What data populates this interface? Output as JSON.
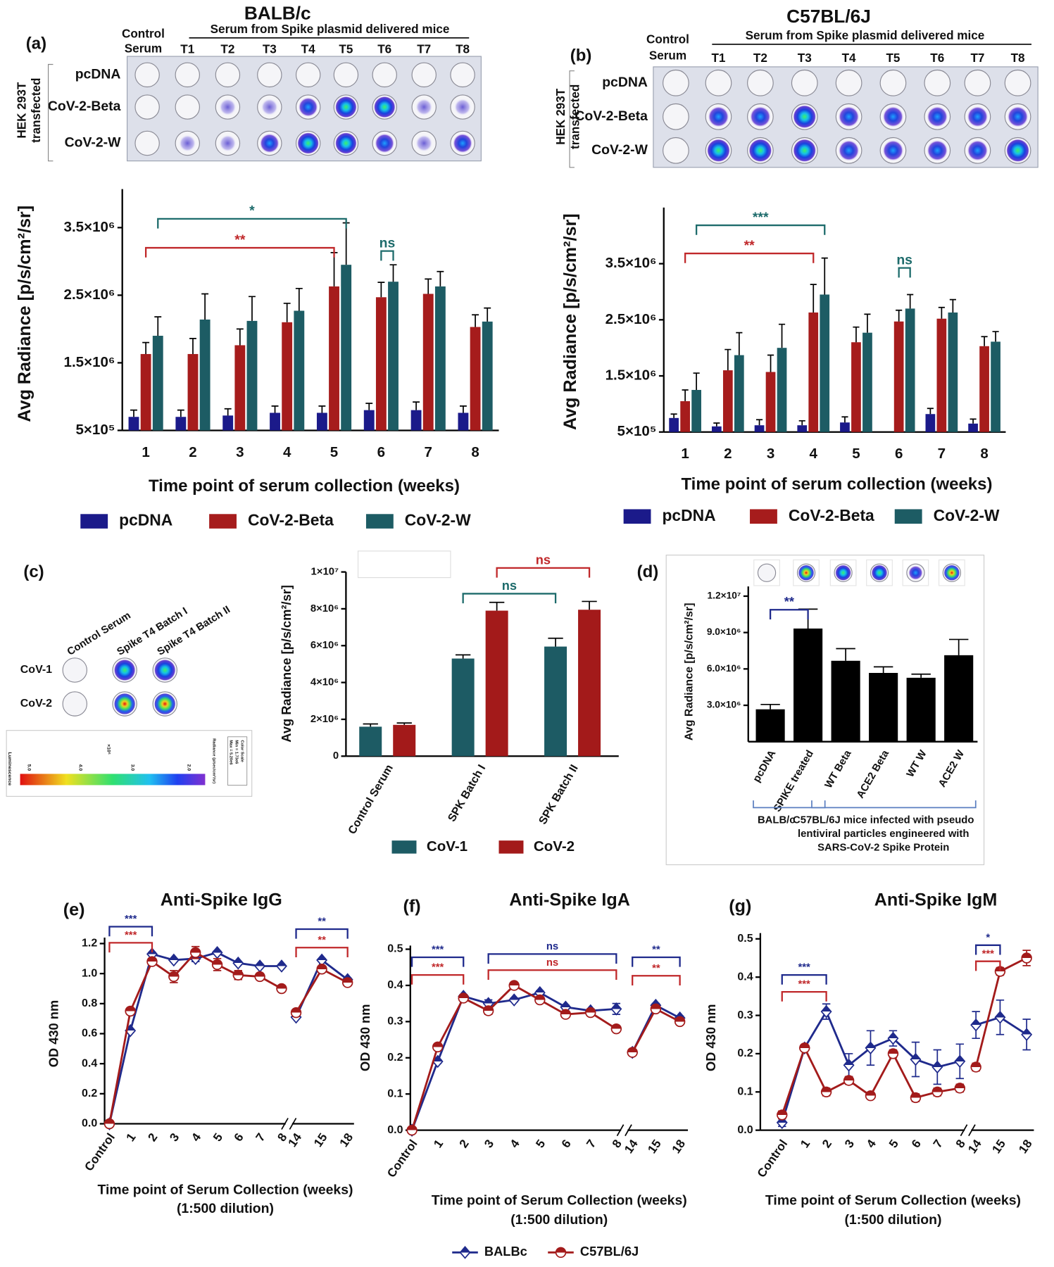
{
  "plates": [
    {
      "label": "(a)",
      "title": "BALB/c",
      "header": "Serum from Spike plasmid delivered mice",
      "control_label": [
        "Control",
        "Serum"
      ],
      "columns": [
        "T1",
        "T2",
        "T3",
        "T4",
        "T5",
        "T6",
        "T7",
        "T8"
      ],
      "rows": [
        "pcDNA",
        "CoV-2-Beta",
        "CoV-2-W"
      ],
      "side_label": [
        "HEK 293T",
        "transfected"
      ]
    },
    {
      "label": "(b)",
      "title": "C57BL/6J",
      "header": "Serum from Spike plasmid delivered mice",
      "control_label": [
        "Control",
        "Serum"
      ],
      "columns": [
        "T1",
        "T2",
        "T3",
        "T4",
        "T5",
        "T6",
        "T7",
        "T8"
      ],
      "rows": [
        "pcDNA",
        "CoV-2-Beta",
        "CoV-2-W"
      ],
      "side_label": [
        "HEK 293T",
        "transfected"
      ]
    }
  ],
  "heatmap": {
    "label": "(c)",
    "columns": [
      "Control Serum",
      "Spike T4 Batch I",
      "Spike T4 Batch II"
    ],
    "rows": [
      "CoV-1",
      "CoV-2"
    ],
    "colorbar": {
      "ticks": [
        "5.0",
        "4.0",
        "3.0",
        "2.0"
      ],
      "exponent": "×10⁶",
      "title": "Luminescence",
      "unit": "Radiance (p/sec/cm²/sr)",
      "scale": [
        "Color Scale",
        "Min = 1.73e6",
        "Max = 5.20e6"
      ]
    }
  },
  "chart_data": [
    {
      "type": "bar",
      "x_label": "Time point of serum collection (weeks)",
      "y_label": "Avg Radiance [p/s/cm²/sr]",
      "categories": [
        "1",
        "2",
        "3",
        "4",
        "5",
        "6",
        "7",
        "8"
      ],
      "series": [
        {
          "name": "pcDNA",
          "color": "#1b1a8a",
          "values": [
            700000,
            700000,
            720000,
            760000,
            760000,
            800000,
            800000,
            760000
          ],
          "errors": [
            100000,
            100000,
            100000,
            100000,
            100000,
            100000,
            120000,
            100000
          ]
        },
        {
          "name": "CoV-2-Beta",
          "color": "#a61c1c",
          "values": [
            1630000,
            1630000,
            1760000,
            2100000,
            2630000,
            2470000,
            2520000,
            2030000
          ],
          "errors": [
            170000,
            230000,
            240000,
            280000,
            500000,
            220000,
            220000,
            180000
          ]
        },
        {
          "name": "CoV-2-W",
          "color": "#1d5c64",
          "values": [
            1900000,
            2140000,
            2120000,
            2270000,
            2950000,
            2700000,
            2630000,
            2110000
          ],
          "errors": [
            280000,
            380000,
            360000,
            330000,
            620000,
            250000,
            220000,
            200000
          ]
        }
      ],
      "ylim": [
        500000,
        4070000
      ],
      "yticks": [
        {
          "value": 500000,
          "label": "5×10⁵"
        },
        {
          "value": 1500000,
          "label": "1.5×10⁶"
        },
        {
          "value": 2500000,
          "label": "2.5×10⁶"
        },
        {
          "value": 3500000,
          "label": "3.5×10⁶"
        }
      ],
      "legend": "bottom",
      "annotations": [
        {
          "text": "**",
          "from": [
            "1",
            "CoV-2-Beta"
          ],
          "to": [
            "5",
            "CoV-2-Beta"
          ],
          "color": "#c0282a"
        },
        {
          "text": "*",
          "from": [
            "1",
            "CoV-2-W"
          ],
          "to": [
            "5",
            "CoV-2-W"
          ],
          "color": "#1d6b6b"
        },
        {
          "text": "ns",
          "from": [
            "6",
            "CoV-2-Beta"
          ],
          "to": [
            "6",
            "CoV-2-W"
          ],
          "color": "#1d6b6b"
        }
      ]
    },
    {
      "type": "bar",
      "x_label": "Time point of serum collection (weeks)",
      "y_label": "Avg Radiance [p/s/cm²/sr]",
      "categories": [
        "1",
        "2",
        "3",
        "4",
        "5",
        "6",
        "7",
        "8"
      ],
      "series": [
        {
          "name": "pcDNA",
          "color": "#1b1a8a",
          "values": [
            750000,
            600000,
            620000,
            620000,
            670000,
            null,
            820000,
            650000
          ],
          "errors": [
            70000,
            60000,
            100000,
            80000,
            100000,
            null,
            100000,
            80000
          ]
        },
        {
          "name": "CoV-2-Beta",
          "color": "#a61c1c",
          "values": [
            1050000,
            1600000,
            1570000,
            2630000,
            2100000,
            2470000,
            2520000,
            2030000
          ],
          "errors": [
            200000,
            370000,
            300000,
            500000,
            270000,
            200000,
            200000,
            170000
          ]
        },
        {
          "name": "CoV-2-W",
          "color": "#1d5c64",
          "values": [
            1250000,
            1870000,
            2000000,
            2950000,
            2270000,
            2700000,
            2630000,
            2110000
          ],
          "errors": [
            300000,
            400000,
            420000,
            650000,
            330000,
            250000,
            230000,
            180000
          ]
        }
      ],
      "ylim": [
        500000,
        4500000
      ],
      "yticks": [
        {
          "value": 500000,
          "label": "5×10⁵"
        },
        {
          "value": 1500000,
          "label": "1.5×10⁶"
        },
        {
          "value": 2500000,
          "label": "2.5×10⁶"
        },
        {
          "value": 3500000,
          "label": "3.5×10⁶"
        }
      ],
      "legend": "bottom",
      "annotations": [
        {
          "text": "***",
          "from": [
            "1",
            "CoV-2-W"
          ],
          "to": [
            "4",
            "CoV-2-W"
          ],
          "color": "#1d6b6b"
        },
        {
          "text": "**",
          "from": [
            "1",
            "CoV-2-Beta"
          ],
          "to": [
            "4",
            "CoV-2-Beta"
          ],
          "color": "#c0282a"
        },
        {
          "text": "ns",
          "from": [
            "6",
            "CoV-2-Beta"
          ],
          "to": [
            "6",
            "CoV-2-W"
          ],
          "color": "#1d6b6b"
        }
      ]
    },
    {
      "type": "bar",
      "y_label": "Avg Radiance [p/s/cm²/sr]",
      "categories": [
        "Control Serum",
        "SPK  Batch I",
        "SPK Batch II"
      ],
      "series": [
        {
          "name": "CoV-1",
          "color": "#1d5b64",
          "values": [
            1600000,
            5300000,
            5950000
          ],
          "errors": [
            150000,
            200000,
            450000
          ]
        },
        {
          "name": "CoV-2",
          "color": "#a31a1a",
          "values": [
            1700000,
            7900000,
            7950000
          ],
          "errors": [
            100000,
            450000,
            450000
          ]
        }
      ],
      "ylim": [
        0,
        10000000
      ],
      "yticks": [
        0,
        {
          "value": 2000000,
          "label": "2×10⁶"
        },
        {
          "value": 4000000,
          "label": "4×10⁶"
        },
        {
          "value": 6000000,
          "label": "6×10⁶"
        },
        {
          "value": 8000000,
          "label": "8×10⁶"
        },
        {
          "value": 10000000,
          "label": "1×10⁷"
        }
      ],
      "legend": "bottom",
      "annotations": [
        {
          "text": "ns",
          "from": [
            "SPK  Batch I",
            "CoV-1"
          ],
          "to": [
            "SPK Batch II",
            "CoV-1"
          ],
          "color": "#1d6b6b"
        },
        {
          "text": "ns",
          "from": [
            "SPK  Batch I",
            "CoV-2"
          ],
          "to": [
            "SPK Batch II",
            "CoV-2"
          ],
          "color": "#c0282a"
        }
      ]
    },
    {
      "type": "bar",
      "label": "(d)",
      "y_label": "Avg Radiance [p/s/cm²/sr]",
      "categories": [
        "pcDNA",
        "SPIKE treated",
        "WT Beta",
        "ACE2 Beta",
        "WT W",
        "ACE2 W"
      ],
      "values": [
        2670000,
        9330000,
        6670000,
        5670000,
        5270000,
        7130000
      ],
      "errors": [
        400000,
        1600000,
        1000000,
        500000,
        300000,
        1300000
      ],
      "color": "#000000",
      "ylim": [
        0,
        12800000
      ],
      "yticks": [
        {
          "value": 3000000,
          "label": "3.0×10⁶"
        },
        {
          "value": 6000000,
          "label": "6.0×10⁶"
        },
        {
          "value": 9000000,
          "label": "9.0×10⁶"
        },
        {
          "value": 12000000,
          "label": "1.2×10⁷"
        }
      ],
      "groups": [
        {
          "lines": [
            "BALB/c"
          ],
          "from": "pcDNA",
          "to": "SPIKE treated"
        },
        {
          "lines": [
            "C57BL/6J mice infected with pseudo",
            "lentiviral particles engineered with",
            "SARS-CoV-2 Spike Protein"
          ],
          "from": "SPIKE treated",
          "to": "ACE2 W"
        }
      ],
      "annotations": [
        {
          "text": "**",
          "from": "pcDNA",
          "to": "SPIKE treated",
          "color": "#1f2a8c"
        }
      ]
    },
    {
      "type": "line",
      "label": "(e)",
      "title": "Anti-Spike IgG",
      "y_label": "OD 430 nm",
      "x_label": [
        "Time point of Serum Collection (weeks)",
        "(1:500 dilution)"
      ],
      "categories": [
        "Control",
        "1",
        "2",
        "3",
        "4",
        "5",
        "6",
        "7",
        "8",
        "14",
        "15",
        "18"
      ],
      "axis_break_after": "8",
      "series": [
        {
          "color": "#1f2a8c",
          "marker": "diamond",
          "values": [
            0,
            0.62,
            1.13,
            1.09,
            1.1,
            1.14,
            1.07,
            1.05,
            1.05,
            0.71,
            1.09,
            0.96
          ],
          "errors": [
            0.01,
            0.01,
            0.01,
            0.01,
            0.02,
            0.01,
            0.01,
            0.01,
            0.01,
            0.01,
            0.01,
            0.01
          ]
        },
        {
          "color": "#a31b1b",
          "marker": "circle",
          "values": [
            0,
            0.75,
            1.08,
            0.98,
            1.14,
            1.06,
            0.99,
            0.98,
            0.9,
            0.74,
            1.03,
            0.94
          ],
          "errors": [
            0.01,
            0.01,
            0.02,
            0.04,
            0.04,
            0.04,
            0.03,
            0.01,
            0.01,
            0.02,
            0.02,
            0.02
          ]
        }
      ],
      "ylim": [
        0,
        1.24
      ],
      "yticks": [
        {
          "value": 0,
          "label": "0.0"
        },
        0.2,
        0.4,
        0.6,
        0.8,
        {
          "value": 1,
          "label": "1.0"
        },
        1.2
      ],
      "annotations": [
        {
          "text": "***",
          "from": "Control",
          "to": "2",
          "color": "#1f2a8c"
        },
        {
          "text": "***",
          "from": "Control",
          "to": "2",
          "color": "#c0282a"
        },
        {
          "text": "**",
          "from": "14",
          "to": "18",
          "color": "#1f2a8c"
        },
        {
          "text": "**",
          "from": "14",
          "to": "18",
          "color": "#c0282a"
        }
      ]
    },
    {
      "type": "line",
      "label": "(f)",
      "title": "Anti-Spike IgA",
      "y_label": "OD 430 nm",
      "x_label": [
        "Time point of Serum Collection (weeks)",
        "(1:500 dilution)"
      ],
      "categories": [
        "Control",
        "1",
        "2",
        "3",
        "4",
        "5",
        "6",
        "7",
        "8",
        "14",
        "15",
        "18"
      ],
      "axis_break_after": "8",
      "series": [
        {
          "name": "BALBc",
          "color": "#1f2a8c",
          "marker": "diamond",
          "values": [
            0,
            0.19,
            0.37,
            0.35,
            0.36,
            0.38,
            0.34,
            0.33,
            0.335,
            0.215,
            0.345,
            0.31
          ],
          "errors": [
            0.005,
            0.005,
            0.005,
            0.01,
            0.005,
            0.005,
            0.005,
            0.005,
            0.015,
            0.005,
            0.005,
            0.005
          ]
        },
        {
          "name": "C57BL/6J",
          "color": "#a31b1b",
          "marker": "circle",
          "values": [
            0,
            0.23,
            0.365,
            0.33,
            0.4,
            0.36,
            0.32,
            0.325,
            0.28,
            0.215,
            0.335,
            0.3
          ],
          "errors": [
            0.005,
            0.005,
            0.005,
            0.01,
            0.005,
            0.005,
            0.005,
            0.005,
            0.005,
            0.005,
            0.005,
            0.005
          ]
        }
      ],
      "ylim": [
        0,
        0.51
      ],
      "yticks": [
        {
          "value": 0,
          "label": "0.0"
        },
        0.1,
        0.2,
        0.3,
        0.4,
        0.5
      ],
      "legend": "bottom",
      "annotations": [
        {
          "text": "***",
          "from": "Control",
          "to": "2",
          "color": "#1f2a8c"
        },
        {
          "text": "***",
          "from": "Control",
          "to": "2",
          "color": "#c0282a"
        },
        {
          "text": "ns",
          "from": "3",
          "to": "8",
          "color": "#1f2a8c"
        },
        {
          "text": "ns",
          "from": "3",
          "to": "8",
          "color": "#c0282a"
        },
        {
          "text": "**",
          "from": "14",
          "to": "18",
          "color": "#1f2a8c"
        },
        {
          "text": "**",
          "from": "14",
          "to": "18",
          "color": "#c0282a"
        }
      ]
    },
    {
      "type": "line",
      "label": "(g)",
      "title": "Anti-Spike IgM",
      "y_label": "OD 430 nm",
      "x_label": [
        "Time point of Serum Collection (weeks)",
        "(1:500 dilution)"
      ],
      "categories": [
        "Control",
        "1",
        "2",
        "3",
        "4",
        "5",
        "6",
        "7",
        "8",
        "14",
        "15",
        "18"
      ],
      "axis_break_after": "8",
      "series": [
        {
          "color": "#1f2a8c",
          "marker": "diamond",
          "values": [
            0.02,
            0.215,
            0.31,
            0.17,
            0.215,
            0.24,
            0.185,
            0.165,
            0.18,
            0.275,
            0.295,
            0.25
          ],
          "errors": [
            0.01,
            0.005,
            0.02,
            0.03,
            0.045,
            0.02,
            0.045,
            0.045,
            0.045,
            0.035,
            0.045,
            0.04
          ]
        },
        {
          "color": "#a31b1b",
          "marker": "circle",
          "values": [
            0.04,
            0.215,
            0.1,
            0.13,
            0.09,
            0.2,
            0.085,
            0.1,
            0.11,
            0.165,
            0.415,
            0.45
          ],
          "errors": [
            0.01,
            0.005,
            0.01,
            0.01,
            0.005,
            0.01,
            0.01,
            0.01,
            0.01,
            0.01,
            0.01,
            0.02
          ]
        }
      ],
      "ylim": [
        0,
        0.515
      ],
      "yticks": [
        {
          "value": 0,
          "label": "0.0"
        },
        0.1,
        0.2,
        0.3,
        0.4,
        0.5
      ],
      "annotations": [
        {
          "text": "***",
          "from": "Control",
          "to": "2",
          "color": "#1f2a8c"
        },
        {
          "text": "***",
          "from": "Control",
          "to": "2",
          "color": "#c0282a"
        },
        {
          "text": "*",
          "from": "14",
          "to": "15",
          "color": "#1f2a8c"
        },
        {
          "text": "***",
          "from": "14",
          "to": "15",
          "color": "#c0282a"
        }
      ]
    }
  ]
}
